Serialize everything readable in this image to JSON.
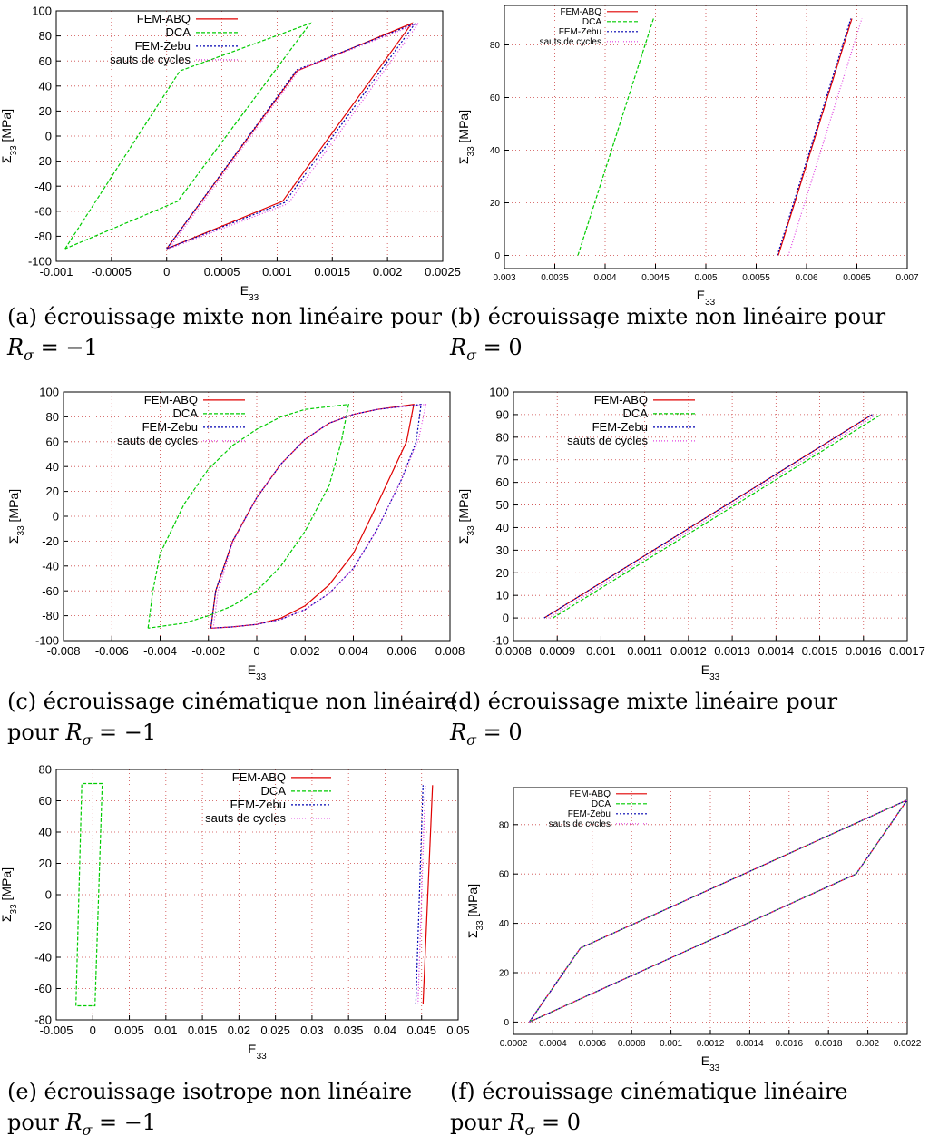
{
  "legend_labels": [
    "FEM-ABQ",
    "DCA",
    "FEM-Zebu",
    "sauts de cycles"
  ],
  "colors": {
    "FEM-ABQ": "#e00000",
    "DCA": "#00cc00",
    "FEM-Zebu": "#0000b0",
    "sauts de cycles": "#e040e0",
    "grid": "#cc4444"
  },
  "captions": [
    {
      "line1": "(a) écrouissage mixte non linéaire pour",
      "line2": "R_σ = −1"
    },
    {
      "line1": "(b) écrouissage mixte non linéaire pour",
      "line2": "R_σ = 0"
    },
    {
      "line1": "(c) écrouissage cinématique non linéaire",
      "line2": "pour R_σ = −1"
    },
    {
      "line1": "(d)  écrouissage  mixte  linéaire  pour",
      "line2": "R_σ = 0"
    },
    {
      "line1": "(e)  écrouissage  isotrope  non  linéaire",
      "line2": "pour R_σ = −1"
    },
    {
      "line1": "(f)  écrouissage  cinématique  linéaire",
      "line2": "pour R_σ = 0"
    }
  ],
  "chart_data": [
    {
      "type": "line",
      "xlabel": "E_33",
      "ylabel": "Σ_33 [MPa]",
      "xlim": [
        -0.001,
        0.0025
      ],
      "ylim": [
        -100,
        100
      ],
      "xticks": [
        -0.001,
        -0.0005,
        0,
        0.0005,
        0.001,
        0.0015,
        0.002,
        0.0025
      ],
      "xtick_labels": [
        "-0.001",
        "-0.0005",
        "0",
        "0.0005",
        "0.001",
        "0.0015",
        "0.002",
        "0.0025"
      ],
      "yticks": [
        -100,
        -80,
        -60,
        -40,
        -20,
        0,
        20,
        40,
        60,
        80,
        100
      ],
      "ytick_labels": [
        "-100",
        "-80",
        "-60",
        "-40",
        "-20",
        "0",
        "20",
        "40",
        "60",
        "80",
        "100"
      ],
      "grid": true,
      "legend": "top-left",
      "series": [
        {
          "name": "FEM-ABQ",
          "x": [
            0,
            0.00118,
            0.00222,
            0.00105,
            0
          ],
          "y": [
            -90,
            52,
            90,
            -52,
            -90
          ]
        },
        {
          "name": "DCA",
          "x": [
            -0.00092,
            0.00012,
            0.0013,
            0.0001,
            -0.00092
          ],
          "y": [
            -90,
            52,
            90,
            -52,
            -90
          ]
        },
        {
          "name": "FEM-Zebu",
          "x": [
            0,
            0.00118,
            0.00225,
            0.00107,
            0
          ],
          "y": [
            -90,
            53,
            90,
            -53,
            -90
          ]
        },
        {
          "name": "sauts de cycles",
          "x": [
            2e-05,
            0.0012,
            0.00228,
            0.0011,
            2e-05
          ],
          "y": [
            -90,
            53,
            90,
            -54,
            -90
          ]
        }
      ]
    },
    {
      "type": "line",
      "xlabel": "E_33",
      "ylabel": "Σ_33 [MPa]",
      "xlim": [
        0.003,
        0.007
      ],
      "ylim": [
        -5,
        95
      ],
      "xticks": [
        0.003,
        0.0035,
        0.004,
        0.0045,
        0.005,
        0.0055,
        0.006,
        0.0065,
        0.007
      ],
      "xtick_labels": [
        "0.003",
        "0.0035",
        "0.004",
        "0.0045",
        "0.005",
        "0.0055",
        "0.006",
        "0.0065",
        "0.007"
      ],
      "yticks": [
        0,
        20,
        40,
        60,
        80
      ],
      "ytick_labels": [
        "0",
        "20",
        "40",
        "60",
        "80"
      ],
      "grid": true,
      "legend": "top-left",
      "series": [
        {
          "name": "FEM-ABQ",
          "x": [
            0.00572,
            0.00645
          ],
          "y": [
            0,
            90
          ]
        },
        {
          "name": "DCA",
          "x": [
            0.00373,
            0.00448
          ],
          "y": [
            0,
            90
          ]
        },
        {
          "name": "FEM-Zebu",
          "x": [
            0.00571,
            0.00644
          ],
          "y": [
            0,
            90
          ]
        },
        {
          "name": "sauts de cycles",
          "x": [
            0.00582,
            0.00655
          ],
          "y": [
            0,
            90
          ]
        }
      ]
    },
    {
      "type": "line",
      "xlabel": "E_33",
      "ylabel": "Σ_33 [MPa]",
      "xlim": [
        -0.008,
        0.008
      ],
      "ylim": [
        -100,
        100
      ],
      "xticks": [
        -0.008,
        -0.006,
        -0.004,
        -0.002,
        0,
        0.002,
        0.004,
        0.006,
        0.008
      ],
      "xtick_labels": [
        "-0.008",
        "-0.006",
        "-0.004",
        "-0.002",
        "0",
        "0.002",
        "0.004",
        "0.006",
        "0.008"
      ],
      "yticks": [
        -100,
        -80,
        -60,
        -40,
        -20,
        0,
        20,
        40,
        60,
        80,
        100
      ],
      "ytick_labels": [
        "-100",
        "-80",
        "-60",
        "-40",
        "-20",
        "0",
        "20",
        "40",
        "60",
        "80",
        "100"
      ],
      "grid": true,
      "legend": "top-left",
      "series": [
        {
          "name": "FEM-ABQ",
          "x": [
            -0.0019,
            -0.0017,
            -0.001,
            0,
            0.001,
            0.002,
            0.003,
            0.004,
            0.005,
            0.0065,
            0.0062,
            0.005,
            0.004,
            0.003,
            0.002,
            0.001,
            0,
            -0.001,
            -0.0019
          ],
          "y": [
            -90,
            -60,
            -20,
            15,
            42,
            62,
            75,
            82,
            86,
            90,
            60,
            10,
            -30,
            -55,
            -72,
            -82,
            -87,
            -89,
            -90
          ]
        },
        {
          "name": "DCA",
          "x": [
            -0.0045,
            -0.0043,
            -0.004,
            -0.003,
            -0.002,
            -0.001,
            0,
            0.001,
            0.002,
            0.0038,
            0.0035,
            0.003,
            0.002,
            0.001,
            0,
            -0.001,
            -0.002,
            -0.003,
            -0.0045
          ],
          "y": [
            -90,
            -60,
            -30,
            10,
            38,
            57,
            70,
            80,
            86,
            90,
            60,
            25,
            -12,
            -40,
            -60,
            -72,
            -80,
            -86,
            -90
          ]
        },
        {
          "name": "FEM-Zebu",
          "x": [
            -0.0019,
            -0.0017,
            -0.001,
            0,
            0.001,
            0.002,
            0.003,
            0.004,
            0.005,
            0.0068,
            0.0066,
            0.006,
            0.005,
            0.004,
            0.003,
            0.002,
            0.001,
            0,
            -0.001,
            -0.0019
          ],
          "y": [
            -90,
            -60,
            -20,
            15,
            42,
            62,
            75,
            82,
            86,
            90,
            60,
            30,
            -10,
            -42,
            -62,
            -75,
            -83,
            -87,
            -89,
            -90
          ]
        },
        {
          "name": "sauts de cycles",
          "x": [
            -0.0018,
            -0.0016,
            -0.001,
            0,
            0.001,
            0.002,
            0.003,
            0.004,
            0.005,
            0.007,
            0.0067,
            0.006,
            0.005,
            0.004,
            0.003,
            0.002,
            0.001,
            0,
            -0.001,
            -0.0018
          ],
          "y": [
            -90,
            -60,
            -21,
            15,
            42,
            62,
            75,
            82,
            86,
            90,
            62,
            30,
            -10,
            -42,
            -62,
            -75,
            -83,
            -87,
            -89,
            -90
          ]
        }
      ]
    },
    {
      "type": "line",
      "xlabel": "E_33",
      "ylabel": "Σ_33 [MPa]",
      "xlim": [
        0.0008,
        0.0017
      ],
      "ylim": [
        -10,
        100
      ],
      "xticks": [
        0.0008,
        0.0009,
        0.001,
        0.0011,
        0.0012,
        0.0013,
        0.0014,
        0.0015,
        0.0016,
        0.0017
      ],
      "xtick_labels": [
        "0.0008",
        "0.0009",
        "0.001",
        "0.0011",
        "0.0012",
        "0.0013",
        "0.0014",
        "0.0015",
        "0.0016",
        "0.0017"
      ],
      "yticks": [
        -10,
        0,
        10,
        20,
        30,
        40,
        50,
        60,
        70,
        80,
        90,
        100
      ],
      "ytick_labels": [
        "-10",
        "0",
        "10",
        "20",
        "30",
        "40",
        "50",
        "60",
        "70",
        "80",
        "90",
        "100"
      ],
      "grid": true,
      "legend": "top-left",
      "series": [
        {
          "name": "FEM-ABQ",
          "x": [
            0.00087,
            0.00162
          ],
          "y": [
            0,
            90
          ]
        },
        {
          "name": "DCA",
          "x": [
            0.00089,
            0.00164
          ],
          "y": [
            0,
            90
          ]
        },
        {
          "name": "FEM-Zebu",
          "x": [
            0.00087,
            0.00162
          ],
          "y": [
            0,
            90
          ]
        },
        {
          "name": "sauts de cycles",
          "x": [
            0.00088,
            0.00163
          ],
          "y": [
            0,
            90
          ]
        }
      ]
    },
    {
      "type": "line",
      "xlabel": "E_33",
      "ylabel": "Σ_33 [MPa]",
      "xlim": [
        -0.005,
        0.05
      ],
      "ylim": [
        -80,
        80
      ],
      "xticks": [
        -0.005,
        0,
        0.005,
        0.01,
        0.015,
        0.02,
        0.025,
        0.03,
        0.035,
        0.04,
        0.045,
        0.05
      ],
      "xtick_labels": [
        "-0.005",
        "0",
        "0.005",
        "0.01",
        "0.015",
        "0.02",
        "0.025",
        "0.03",
        "0.035",
        "0.04",
        "0.045",
        "0.05"
      ],
      "yticks": [
        -80,
        -60,
        -40,
        -20,
        0,
        20,
        40,
        60,
        80
      ],
      "ytick_labels": [
        "-80",
        "-60",
        "-40",
        "-20",
        "0",
        "20",
        "40",
        "60",
        "80"
      ],
      "grid": true,
      "legend": "top-right",
      "series": [
        {
          "name": "FEM-ABQ",
          "x": [
            0.0452,
            0.0465
          ],
          "y": [
            -70,
            70
          ]
        },
        {
          "name": "DCA",
          "x": [
            -0.0023,
            -0.0015,
            0.0013,
            0.0003,
            -0.0023
          ],
          "y": [
            -71,
            71,
            71,
            -71,
            -71
          ]
        },
        {
          "name": "FEM-Zebu",
          "x": [
            0.0442,
            0.0452
          ],
          "y": [
            -70,
            70
          ]
        },
        {
          "name": "sauts de cycles",
          "x": [
            0.0445,
            0.0455
          ],
          "y": [
            -70,
            70
          ]
        }
      ]
    },
    {
      "type": "line",
      "xlabel": "E_33",
      "ylabel": "Σ_33 [MPa]",
      "xlim": [
        0.0002,
        0.0022
      ],
      "ylim": [
        -5,
        95
      ],
      "xticks": [
        0.0002,
        0.0004,
        0.0006,
        0.0008,
        0.001,
        0.0012,
        0.0014,
        0.0016,
        0.0018,
        0.002,
        0.0022
      ],
      "xtick_labels": [
        "0.0002",
        "0.0004",
        "0.0006",
        "0.0008",
        "0.001",
        "0.0012",
        "0.0014",
        "0.0016",
        "0.0018",
        "0.002",
        "0.0022"
      ],
      "yticks": [
        0,
        20,
        40,
        60,
        80
      ],
      "ytick_labels": [
        "0",
        "20",
        "40",
        "60",
        "80"
      ],
      "grid": true,
      "legend": "top-left",
      "series": [
        {
          "name": "FEM-ABQ",
          "x": [
            0.00028,
            0.00054,
            0.0022,
            0.00194,
            0.00028
          ],
          "y": [
            0,
            30,
            90,
            60,
            0
          ]
        },
        {
          "name": "DCA",
          "x": [
            0.00028,
            0.00054,
            0.0022,
            0.00194,
            0.00028
          ],
          "y": [
            0,
            30,
            90,
            60,
            0
          ]
        },
        {
          "name": "FEM-Zebu",
          "x": [
            0.00028,
            0.00054,
            0.0022,
            0.00194,
            0.00028
          ],
          "y": [
            0,
            30,
            90,
            60,
            0
          ]
        },
        {
          "name": "sauts de cycles",
          "x": [
            0.00028,
            0.00054,
            0.0022,
            0.00194,
            0.00028
          ],
          "y": [
            0,
            30,
            90,
            60,
            0
          ]
        }
      ]
    }
  ]
}
